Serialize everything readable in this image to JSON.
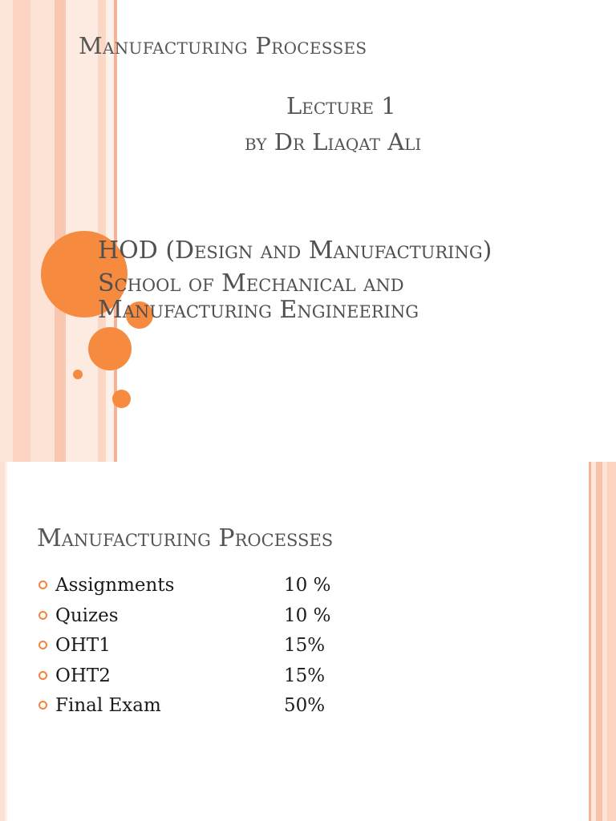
{
  "slide1": {
    "title": "Manufacturing Processes",
    "lecture": "Lecture 1",
    "author": "by Dr Liaqat Ali",
    "hod": "HOD (Design and Manufacturing)",
    "school_line1": "School of Mechanical and",
    "school_line2": "Manufacturing Engineering"
  },
  "slide2": {
    "title": "Manufacturing Processes",
    "items": [
      {
        "label": "Assignments",
        "value": "10 %"
      },
      {
        "label": "Quizes",
        "value": "10 %"
      },
      {
        "label": "OHT1",
        "value": "15%"
      },
      {
        "label": "OHT2",
        "value": "15%"
      },
      {
        "label": "Final Exam",
        "value": "50%"
      }
    ]
  },
  "colors": {
    "accent": "#f68a3f",
    "stripe_light": "#fbd9c8",
    "stripe_mid": "#f7b69a"
  }
}
